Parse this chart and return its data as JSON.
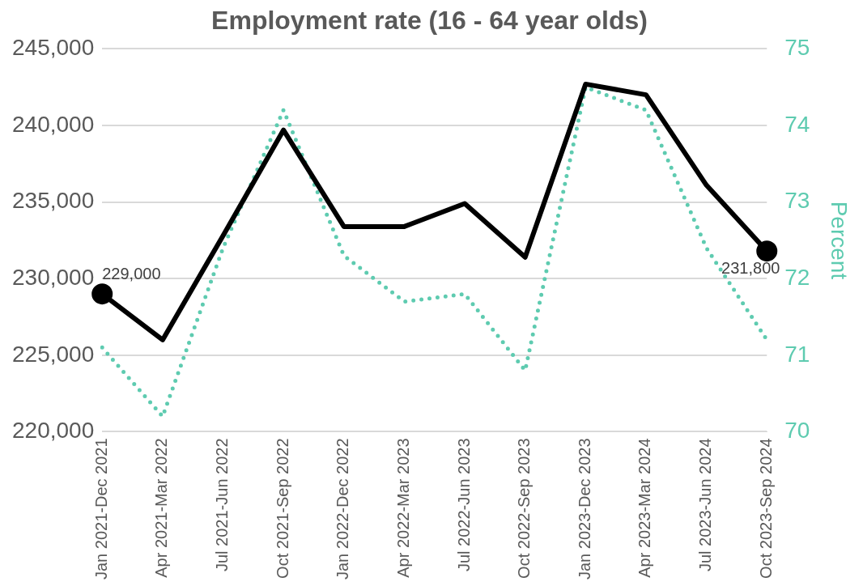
{
  "chart_data": {
    "type": "line",
    "title": "Employment rate (16 - 64 year olds)",
    "y2label": "Percent",
    "categories": [
      "Jan 2021-Dec 2021",
      "Apr 2021-Mar 2022",
      "Jul 2021-Jun 2022",
      "Oct 2021-Sep 2022",
      "Jan 2022-Dec 2022",
      "Apr 2022-Mar 2023",
      "Jul 2022-Jun 2023",
      "Oct 2022-Sep 2023",
      "Jan 2023-Dec 2023",
      "Apr 2023-Mar 2024",
      "Jul 2023-Jun 2024",
      "Oct 2023-Sep 2024"
    ],
    "series": [
      {
        "color": "#000000",
        "line_style": "solid",
        "values": [
          229000,
          226000,
          232800,
          239700,
          233400,
          233400,
          234900,
          231400,
          242700,
          242000,
          236100,
          231800
        ],
        "value_labels": [
          "229,000",
          null,
          null,
          null,
          null,
          null,
          null,
          null,
          null,
          null,
          null,
          "231,800"
        ]
      },
      {
        "color": "#5ecbb0",
        "line_style": "dotted",
        "axis": "y2",
        "values": [
          71.1,
          70.2,
          72.4,
          74.2,
          72.3,
          71.7,
          71.8,
          70.8,
          74.5,
          74.2,
          72.4,
          71.2
        ]
      }
    ],
    "ylim": [
      220000,
      245000
    ],
    "yticks": [
      {
        "value": 220000,
        "label": "220,000"
      },
      {
        "value": 225000,
        "label": "225,000"
      },
      {
        "value": 230000,
        "label": "230,000"
      },
      {
        "value": 235000,
        "label": "235,000"
      },
      {
        "value": 240000,
        "label": "240,000"
      },
      {
        "value": 245000,
        "label": "245,000"
      }
    ],
    "y2lim": [
      70,
      75
    ],
    "y2ticks": [
      70,
      71,
      72,
      73,
      74,
      75
    ],
    "grid": "y",
    "legend": false
  }
}
